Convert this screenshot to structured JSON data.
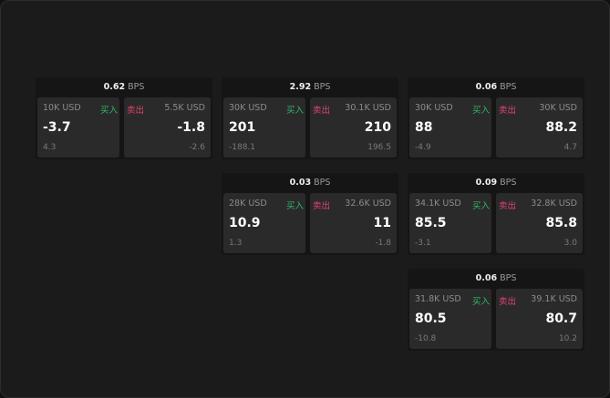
{
  "colors": {
    "buy": "#2fb86a",
    "sell": "#e0436f"
  },
  "unit": "BPS",
  "cards": [
    {
      "spread": "0.62",
      "bid": {
        "size": "10K USD",
        "side": "买入",
        "price": "-3.7",
        "change": "4.3"
      },
      "ask": {
        "size": "5.5K USD",
        "side": "卖出",
        "price": "-1.8",
        "change": "-2.6"
      }
    },
    {
      "spread": "2.92",
      "bid": {
        "size": "30K USD",
        "side": "买入",
        "price": "201",
        "change": "-188.1"
      },
      "ask": {
        "size": "30.1K USD",
        "side": "卖出",
        "price": "210",
        "change": "196.5"
      }
    },
    {
      "spread": "0.06",
      "bid": {
        "size": "30K USD",
        "side": "买入",
        "price": "88",
        "change": "-4.9"
      },
      "ask": {
        "size": "30K USD",
        "side": "卖出",
        "price": "88.2",
        "change": "4.7"
      }
    },
    {
      "spread": "0.03",
      "bid": {
        "size": "28K USD",
        "side": "买入",
        "price": "10.9",
        "change": "1.3"
      },
      "ask": {
        "size": "32.6K USD",
        "side": "卖出",
        "price": "11",
        "change": "-1.8"
      }
    },
    {
      "spread": "0.09",
      "bid": {
        "size": "34.1K USD",
        "side": "买入",
        "price": "85.5",
        "change": "-3.1"
      },
      "ask": {
        "size": "32.8K USD",
        "side": "卖出",
        "price": "85.8",
        "change": "3.0"
      }
    },
    {
      "spread": "0.06",
      "bid": {
        "size": "31.8K USD",
        "side": "买入",
        "price": "80.5",
        "change": "-10.8"
      },
      "ask": {
        "size": "39.1K USD",
        "side": "卖出",
        "price": "80.7",
        "change": "10.2"
      }
    }
  ]
}
